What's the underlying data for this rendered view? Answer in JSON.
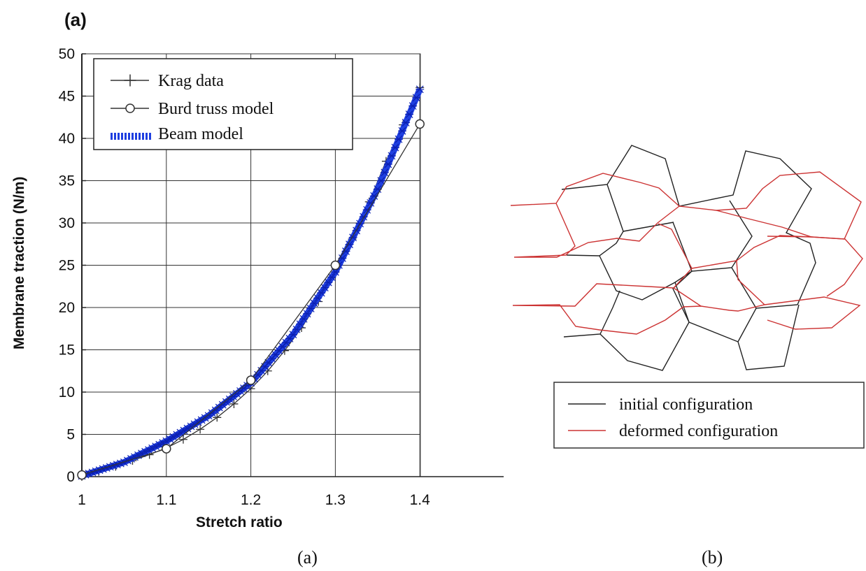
{
  "panel_tag": "(a)",
  "captions": {
    "left": "(a)",
    "right": "(b)"
  },
  "chart_data": {
    "type": "line",
    "xlabel": "Stretch ratio",
    "ylabel": "Membrane traction (N/m)",
    "xlim": [
      1.0,
      1.5
    ],
    "ylim": [
      0,
      50
    ],
    "x_ticks": [
      "1",
      "1.1",
      "1.2",
      "1.3",
      "1.4"
    ],
    "y_ticks": [
      "0",
      "5",
      "10",
      "15",
      "20",
      "25",
      "30",
      "35",
      "40",
      "45",
      "50"
    ],
    "grid": true,
    "legend_position": "top-left",
    "series": [
      {
        "name": "Krag data",
        "marker": "plus",
        "color": "#333333",
        "x": [
          1.0,
          1.02,
          1.04,
          1.06,
          1.08,
          1.1,
          1.12,
          1.14,
          1.16,
          1.18,
          1.2,
          1.22,
          1.24,
          1.26,
          1.28,
          1.3,
          1.32,
          1.34,
          1.36,
          1.38,
          1.4
        ],
        "y": [
          0.0,
          0.6,
          1.2,
          1.9,
          2.6,
          3.4,
          4.4,
          5.6,
          7.0,
          8.6,
          10.4,
          12.5,
          14.9,
          17.6,
          20.7,
          24.2,
          28.1,
          32.5,
          37.3,
          41.6,
          46.0
        ]
      },
      {
        "name": "Burd truss model",
        "marker": "circle",
        "color": "#333333",
        "x": [
          1.0,
          1.1,
          1.2,
          1.3,
          1.4
        ],
        "y": [
          0.2,
          3.3,
          11.4,
          25.0,
          41.7
        ]
      },
      {
        "name": "Beam model",
        "marker": "star",
        "color": "#1f3fe0",
        "x": [
          1.0,
          1.05,
          1.1,
          1.15,
          1.2,
          1.25,
          1.3,
          1.35,
          1.4
        ],
        "y": [
          0.1,
          1.7,
          4.2,
          7.2,
          11.1,
          16.8,
          24.2,
          34.0,
          45.8
        ]
      }
    ]
  },
  "diagram": {
    "legend": [
      {
        "label": "initial configuration",
        "color": "#222222"
      },
      {
        "label": "deformed configuration",
        "color": "#cc3333"
      }
    ]
  }
}
